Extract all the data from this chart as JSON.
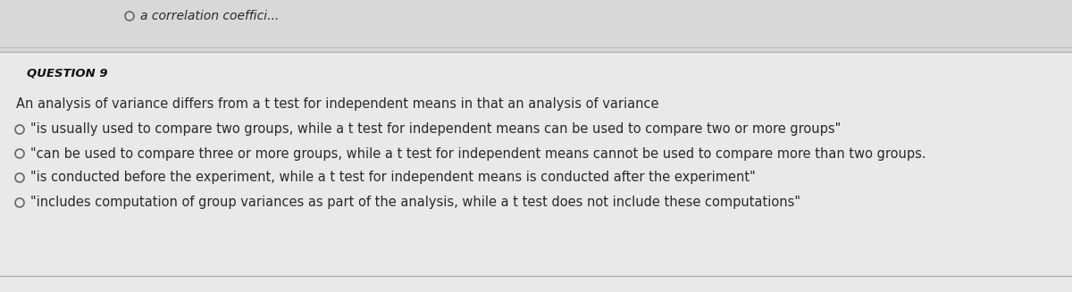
{
  "background_color": "#e9e9e9",
  "top_bg_color": "#d8d8d8",
  "question_bg_color": "#f0f0f0",
  "question_label": "QUESTION 9",
  "intro_text": "An analysis of variance differs from a t test for independent means in that an analysis of variance",
  "options": [
    "\"is usually used to compare two groups, while a t test for independent means can be used to compare two or more groups\"",
    "\"can be used to compare three or more groups, while a t test for independent means cannot be used to compare more than two groups.",
    "\"is conducted before the experiment, while a t test for independent means is conducted after the experiment\"",
    "\"includes computation of group variances as part of the analysis, while a t test does not include these computations\""
  ],
  "top_text": "a correlation coeffici...",
  "divider_color": "#b0b0b0",
  "text_color": "#2a2a2a",
  "label_color": "#111111",
  "circle_color": "#666666",
  "font_size_question": 9.5,
  "font_size_intro": 10.5,
  "font_size_options": 10.5,
  "font_size_top": 10.0
}
